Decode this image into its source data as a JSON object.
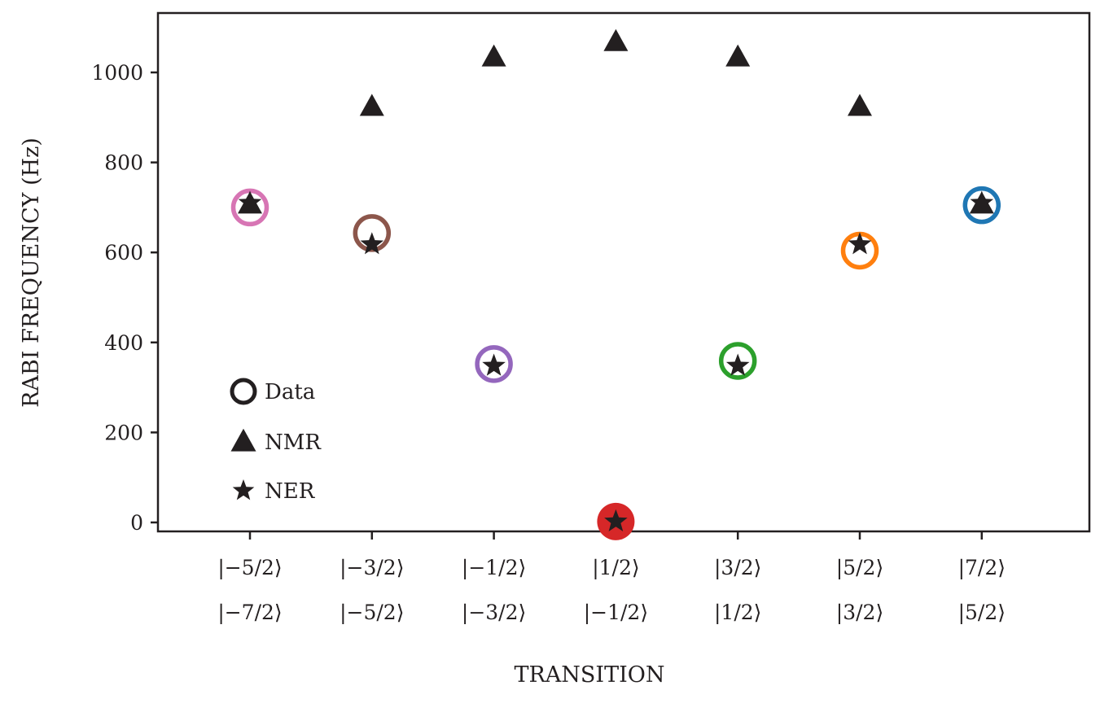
{
  "chart_data": {
    "type": "scatter",
    "title": "",
    "xlabel": "TRANSITION",
    "ylabel": "RABI FREQUENCY (Hz)",
    "ylim": [
      -20,
      1130
    ],
    "yticks": [
      0,
      200,
      400,
      600,
      800,
      1000
    ],
    "ytick_labels": [
      "0",
      "200",
      "400",
      "600",
      "800",
      "1000"
    ],
    "grid": false,
    "legend_position": "lower-left",
    "categories": [
      {
        "upper": "|−5/2⟩",
        "lower": "|−7/2⟩"
      },
      {
        "upper": "|−3/2⟩",
        "lower": "|−5/2⟩"
      },
      {
        "upper": "|−1/2⟩",
        "lower": "|−3/2⟩"
      },
      {
        "upper": "|1/2⟩",
        "lower": "|−1/2⟩"
      },
      {
        "upper": "|3/2⟩",
        "lower": "|1/2⟩"
      },
      {
        "upper": "|5/2⟩",
        "lower": "|3/2⟩"
      },
      {
        "upper": "|7/2⟩",
        "lower": "|5/2⟩"
      }
    ],
    "series": [
      {
        "name": "Data",
        "marker": "open-circle",
        "values": [
          700,
          643,
          352,
          2,
          359,
          604,
          705
        ],
        "colors": [
          "#d775b4",
          "#8c564b",
          "#9467bd",
          "#d62728",
          "#2ca02c",
          "#ff7f0e",
          "#1f77b4"
        ],
        "filled": [
          false,
          false,
          false,
          true,
          false,
          false,
          false
        ]
      },
      {
        "name": "NMR",
        "marker": "triangle",
        "values": [
          705,
          922,
          1032,
          1066,
          1032,
          922,
          705
        ],
        "color": "#231f20"
      },
      {
        "name": "NER",
        "marker": "star",
        "values": [
          710,
          618,
          348,
          2,
          348,
          618,
          710
        ],
        "color": "#231f20"
      }
    ],
    "legend": [
      {
        "label": "Data",
        "marker": "open-circle"
      },
      {
        "label": "NMR",
        "marker": "triangle"
      },
      {
        "label": "NER",
        "marker": "star"
      }
    ]
  }
}
